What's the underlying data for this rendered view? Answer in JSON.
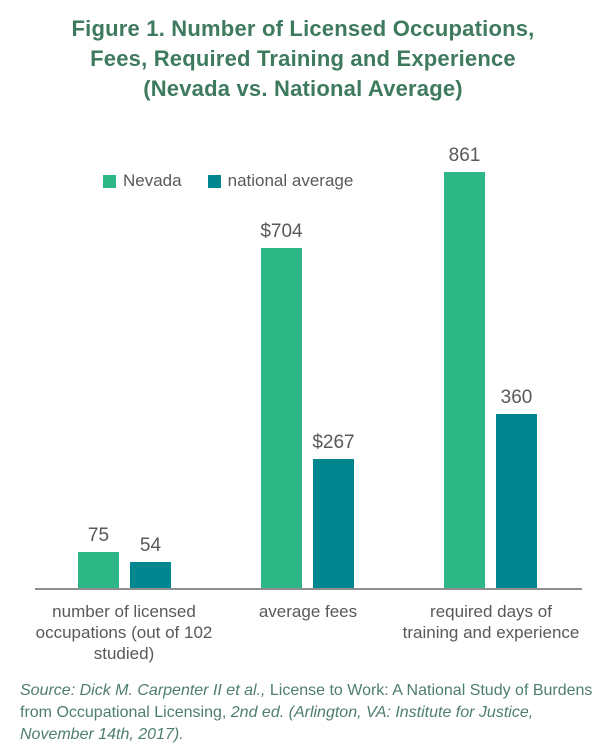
{
  "chart_data": {
    "type": "bar",
    "title": "Figure 1. Number of Licensed Occupations, Fees, Required Training and Experience (Nevada vs. National Average)",
    "title_lines": [
      "Figure 1. Number of Licensed Occupations,",
      "Fees, Required Training and Experience",
      "(Nevada vs. National Average)"
    ],
    "title_color": "#3e7a5e",
    "categories": [
      "number of licensed occupations (out of 102 studied)",
      "average fees",
      "required days of training and experience"
    ],
    "category_lines": [
      [
        "number of licensed",
        "occupations (out of 102",
        "studied)"
      ],
      [
        "average fees"
      ],
      [
        "required days of",
        "training and experience"
      ]
    ],
    "series": [
      {
        "name": "Nevada",
        "color": "#2db786",
        "values": [
          75,
          704,
          861
        ],
        "labels": [
          "75",
          "$704",
          "861"
        ]
      },
      {
        "name": "national average",
        "color": "#00868e",
        "values": [
          54,
          267,
          360
        ],
        "labels": [
          "54",
          "$267",
          "360"
        ]
      }
    ],
    "xlabel": "",
    "ylabel": "",
    "ylim": [
      0,
      861
    ],
    "grid": false,
    "y_axis_shown": false,
    "legend_position": "top-left",
    "value_labels_shown": true,
    "axis_line_color": "#8b8d8f",
    "text_color": "#58595b"
  },
  "source": {
    "segments": [
      {
        "text": "Source: Dick M. Carpenter II et al., ",
        "style": "italic"
      },
      {
        "text": "License to Work: A National Study of Burdens from Occupational Licensing, ",
        "style": "normal"
      },
      {
        "text": "2nd ed. (Arlington, VA: Institute for Justice, November 14th, 2017).",
        "style": "italic"
      }
    ]
  }
}
